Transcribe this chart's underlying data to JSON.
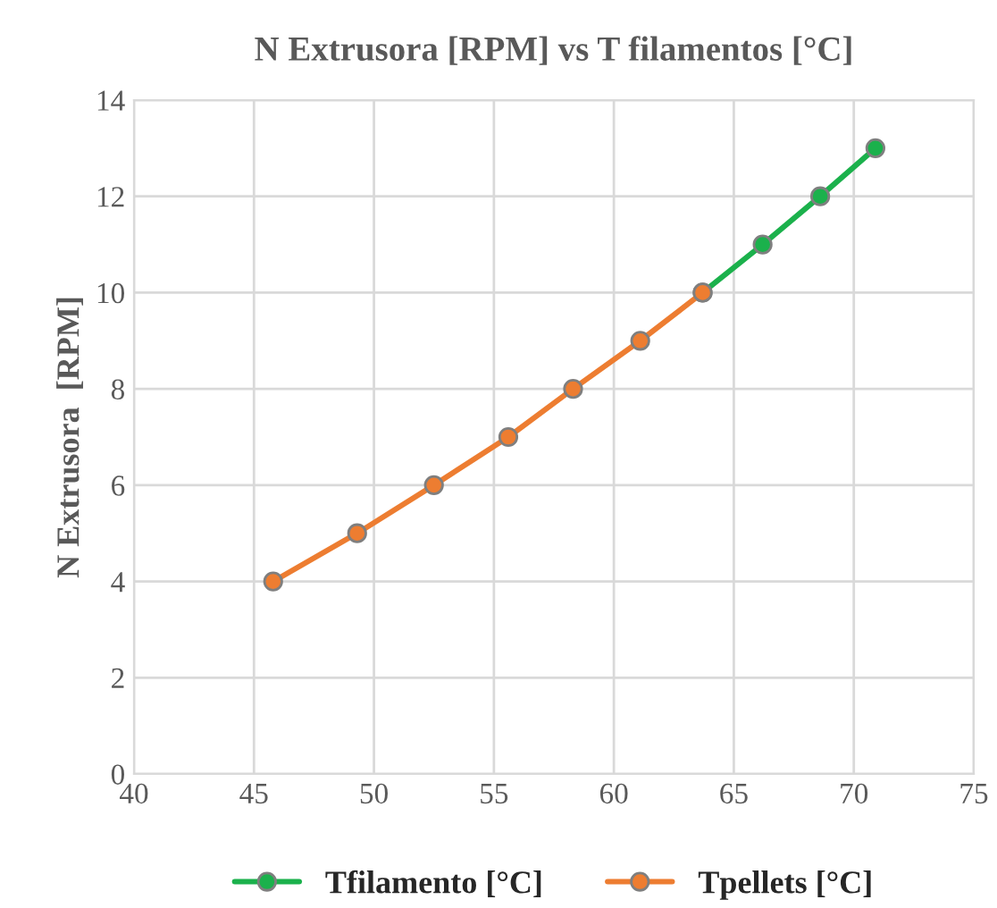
{
  "chart_data": {
    "type": "line",
    "title": "N Extrusora [RPM] vs T filamentos [°C]",
    "ylabel": "N Extrusora  [RPM]",
    "x": [
      45.8,
      49.3,
      52.5,
      55.6,
      58.3,
      61.1,
      63.7,
      66.2,
      68.6,
      70.9
    ],
    "series": [
      {
        "name": "Tfilamento [°C]",
        "color": "#1bb14c",
        "values": [
          null,
          null,
          null,
          null,
          null,
          null,
          10,
          11,
          12,
          13
        ]
      },
      {
        "name": "Tpellets [°C]",
        "color": "#ed7d31",
        "values": [
          4,
          5,
          6,
          7,
          8,
          9,
          10,
          null,
          null,
          null
        ]
      }
    ],
    "xlim": [
      40,
      75
    ],
    "xticks": [
      40,
      45,
      50,
      55,
      60,
      65,
      70,
      75
    ],
    "ylim": [
      0,
      14
    ],
    "yticks": [
      0,
      2,
      4,
      6,
      8,
      10,
      12,
      14
    ],
    "grid": true,
    "legend": "bottom",
    "marker": "circle",
    "line_style": "solid"
  }
}
